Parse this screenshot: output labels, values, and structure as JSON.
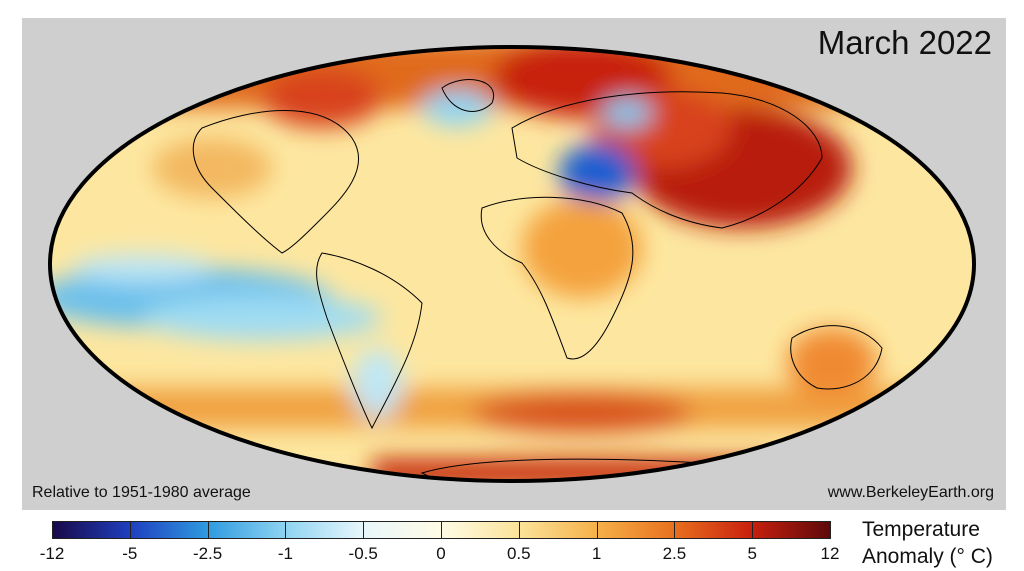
{
  "title": "March 2022",
  "baseline_note": "Relative to 1951-1980 average",
  "source": "www.BerkeleyEarth.org",
  "colorbar": {
    "label_line1": "Temperature",
    "label_line2": "Anomaly (° C)",
    "ticks": [
      "-12",
      "-5",
      "-2.5",
      "-1",
      "-0.5",
      "0",
      "0.5",
      "1",
      "2.5",
      "5",
      "12"
    ],
    "colors": [
      "#1a0a4a",
      "#1f3fbf",
      "#2f9be0",
      "#8fd4f2",
      "#e8f7fb",
      "#fffbe6",
      "#fbe39a",
      "#f6b24a",
      "#e8701e",
      "#c8200e",
      "#5e0a0a"
    ]
  },
  "map": {
    "projection": "Mollweide",
    "background_color": "#cfcfcf",
    "regions": [
      "Siberia / Central Asia: strong warm anomaly",
      "Eastern Mediterranean / Black Sea: cold anomaly",
      "Eastern Pacific: cool anomaly (La Niña)",
      "Arctic: warm anomaly",
      "Antarctica coast: warm anomaly"
    ]
  }
}
